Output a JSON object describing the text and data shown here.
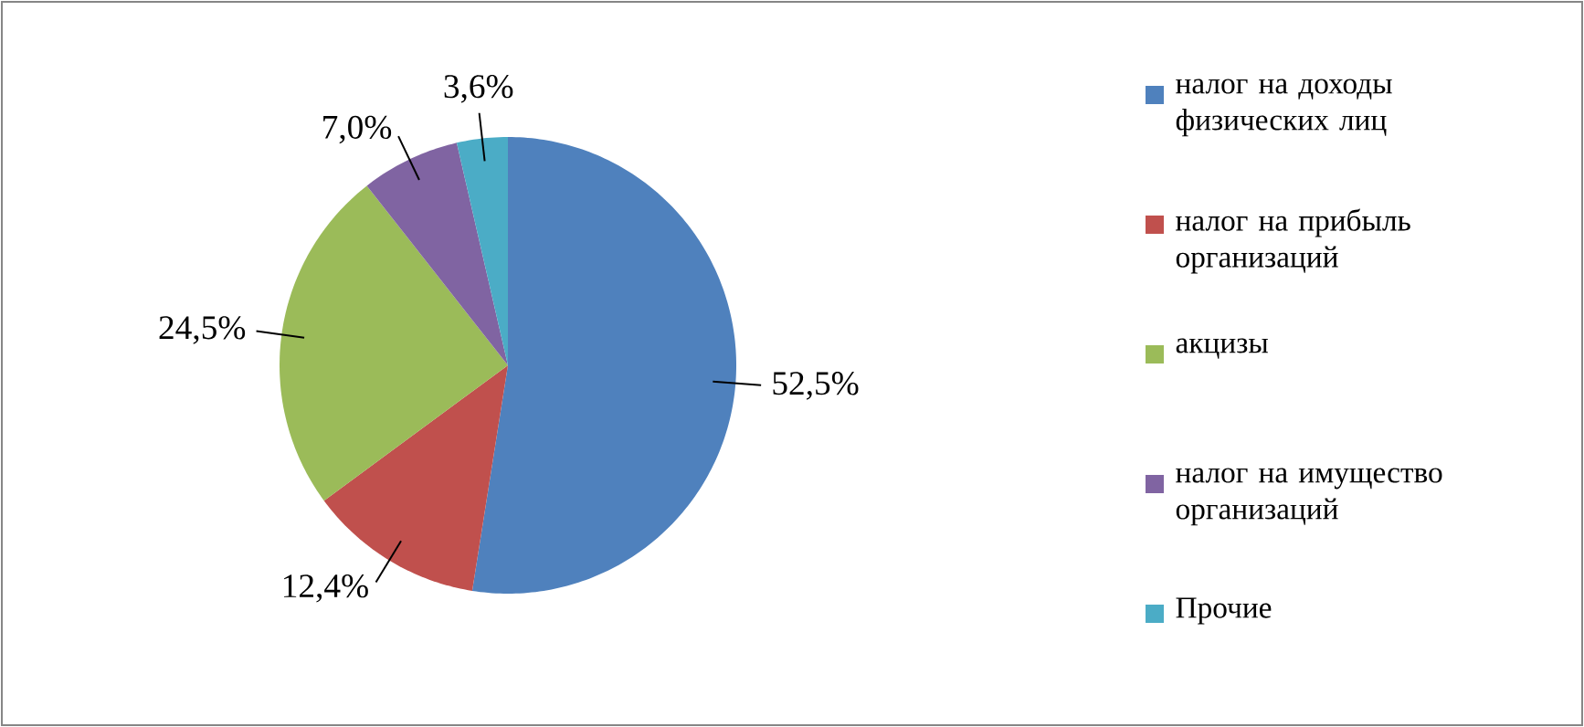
{
  "chart_data": {
    "type": "pie",
    "categories": [
      "налог на доходы физических лиц",
      "налог на прибыль организаций",
      "акцизы",
      "налог на имущество организаций",
      "Прочие"
    ],
    "values": [
      52.5,
      12.4,
      24.5,
      7.0,
      3.6
    ],
    "value_labels": [
      "52,5%",
      "12,4%",
      "24,5%",
      "7,0%",
      "3,6%"
    ],
    "colors": [
      "#4f81bd",
      "#c0504d",
      "#9bbb59",
      "#8064a2",
      "#4bacc6"
    ],
    "legend": "right"
  }
}
